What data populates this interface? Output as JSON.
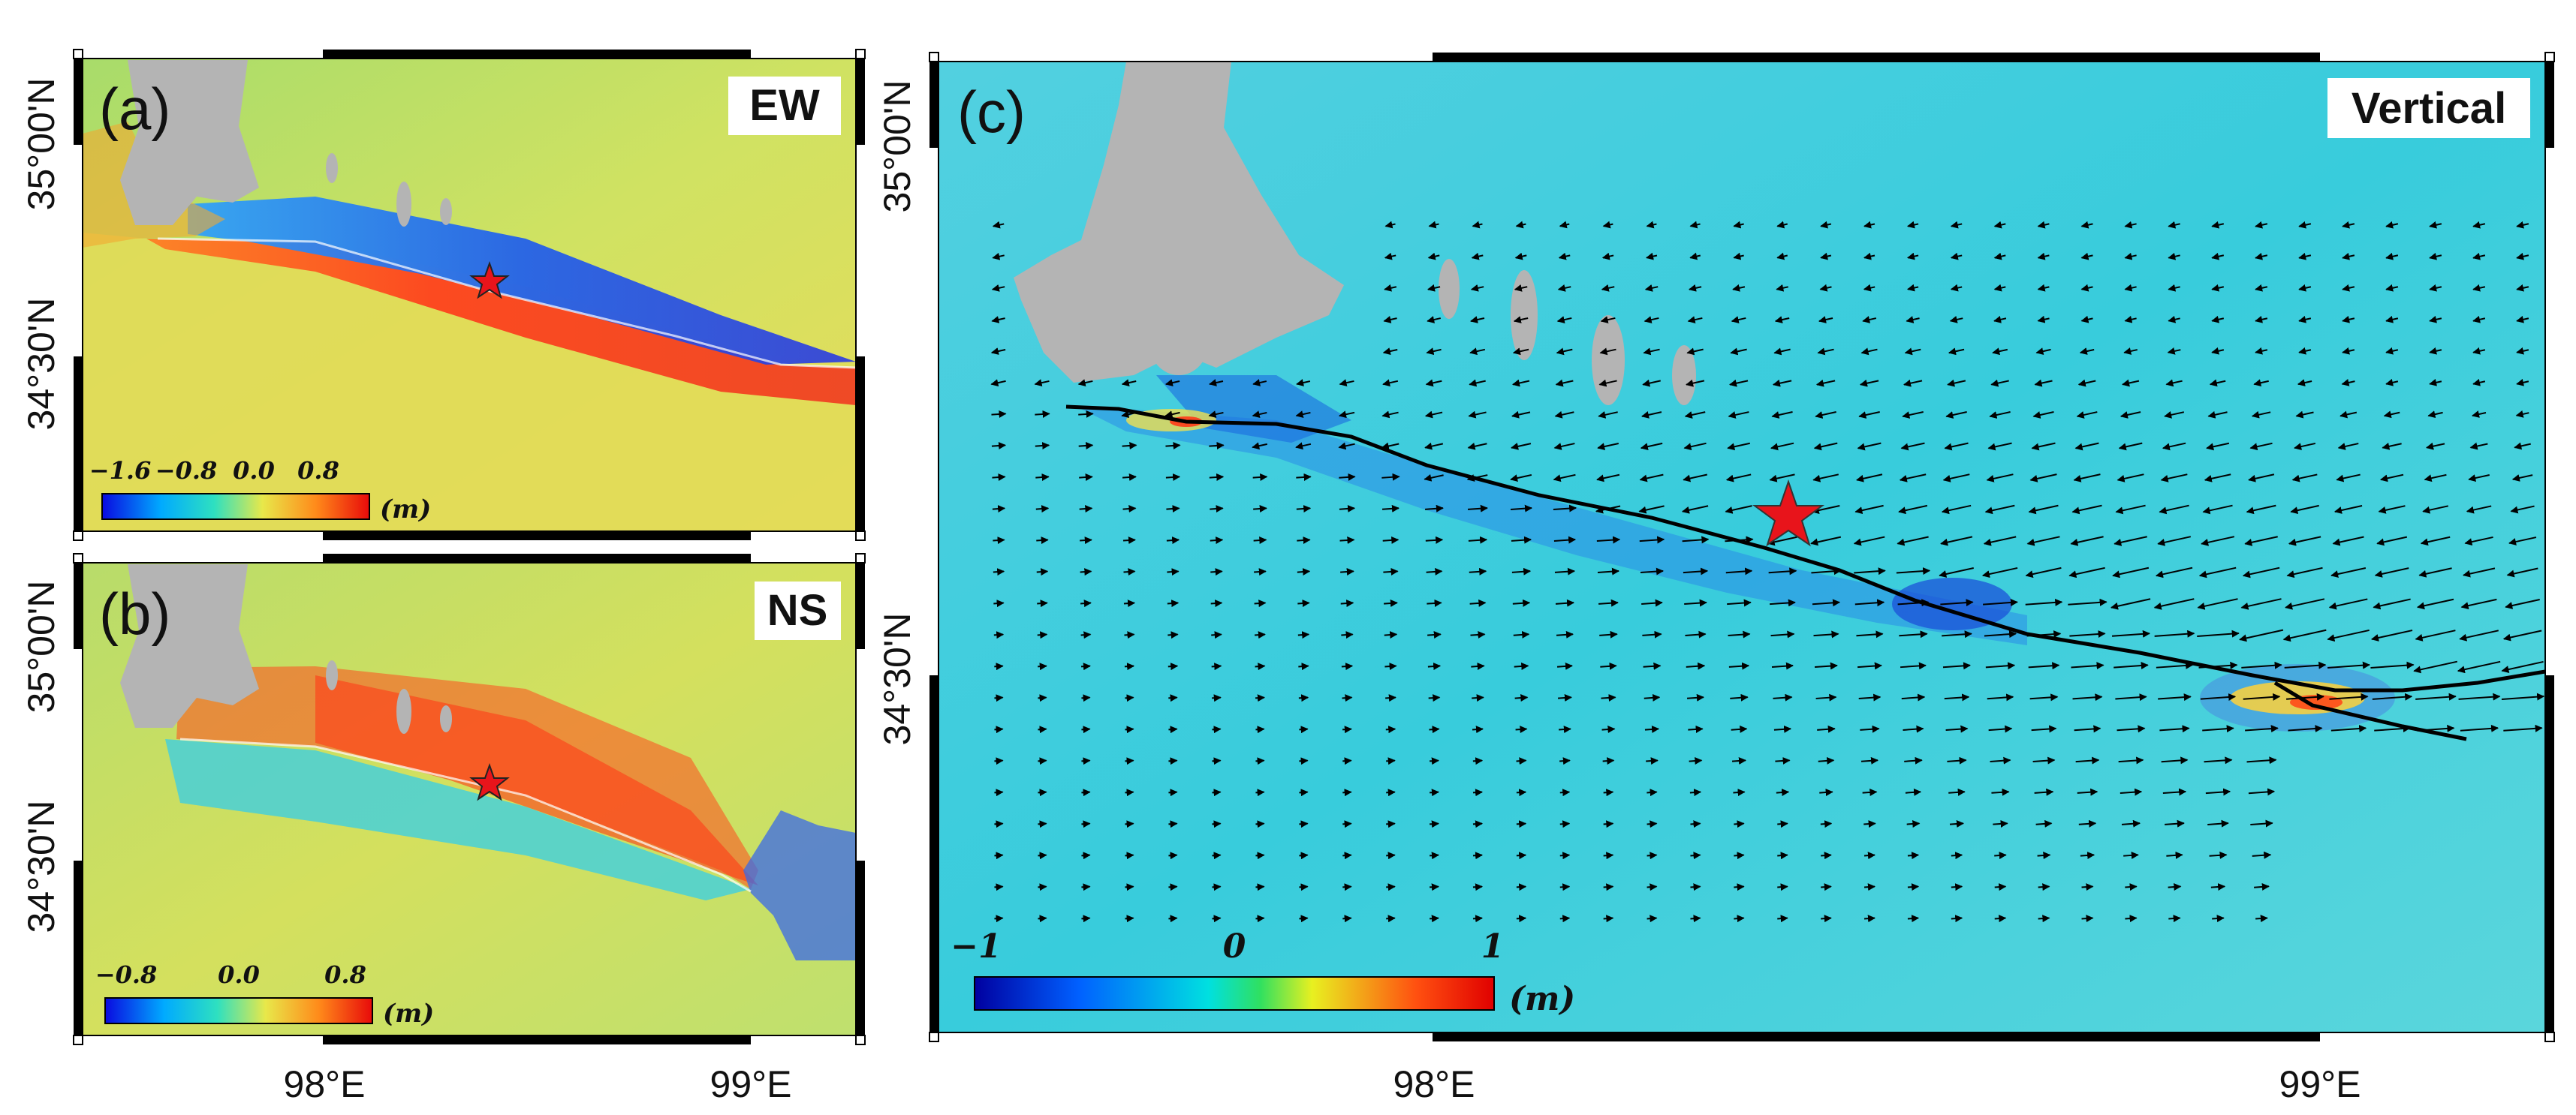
{
  "panels": [
    {
      "id": "a",
      "label": "(a)",
      "component": "EW",
      "lat_ticks": [
        "35°00'N",
        "34°30'N"
      ],
      "colorbar": {
        "ticks": [
          "−1.6",
          "−0.8",
          "0.0",
          "0.8"
        ],
        "unit": "(m)"
      }
    },
    {
      "id": "b",
      "label": "(b)",
      "component": "NS",
      "lat_ticks": [
        "35°00'N",
        "34°30'N"
      ],
      "colorbar": {
        "ticks": [
          "−0.8",
          "0.0",
          "0.8"
        ],
        "unit": "(m)"
      }
    },
    {
      "id": "c",
      "label": "(c)",
      "component": "Vertical",
      "lat_ticks": [
        "35°00'N",
        "34°30'N"
      ],
      "colorbar": {
        "ticks": [
          "−1",
          "0",
          "1"
        ],
        "unit": "(m)"
      }
    }
  ],
  "lon_ticks": [
    "98°E",
    "99°E"
  ],
  "colors": {
    "star": "#e8141b",
    "lake": "#b4b4b4",
    "fault": "#000000"
  },
  "icons": [
    "epicenter-star-icon",
    "displacement-arrow-icon"
  ]
}
